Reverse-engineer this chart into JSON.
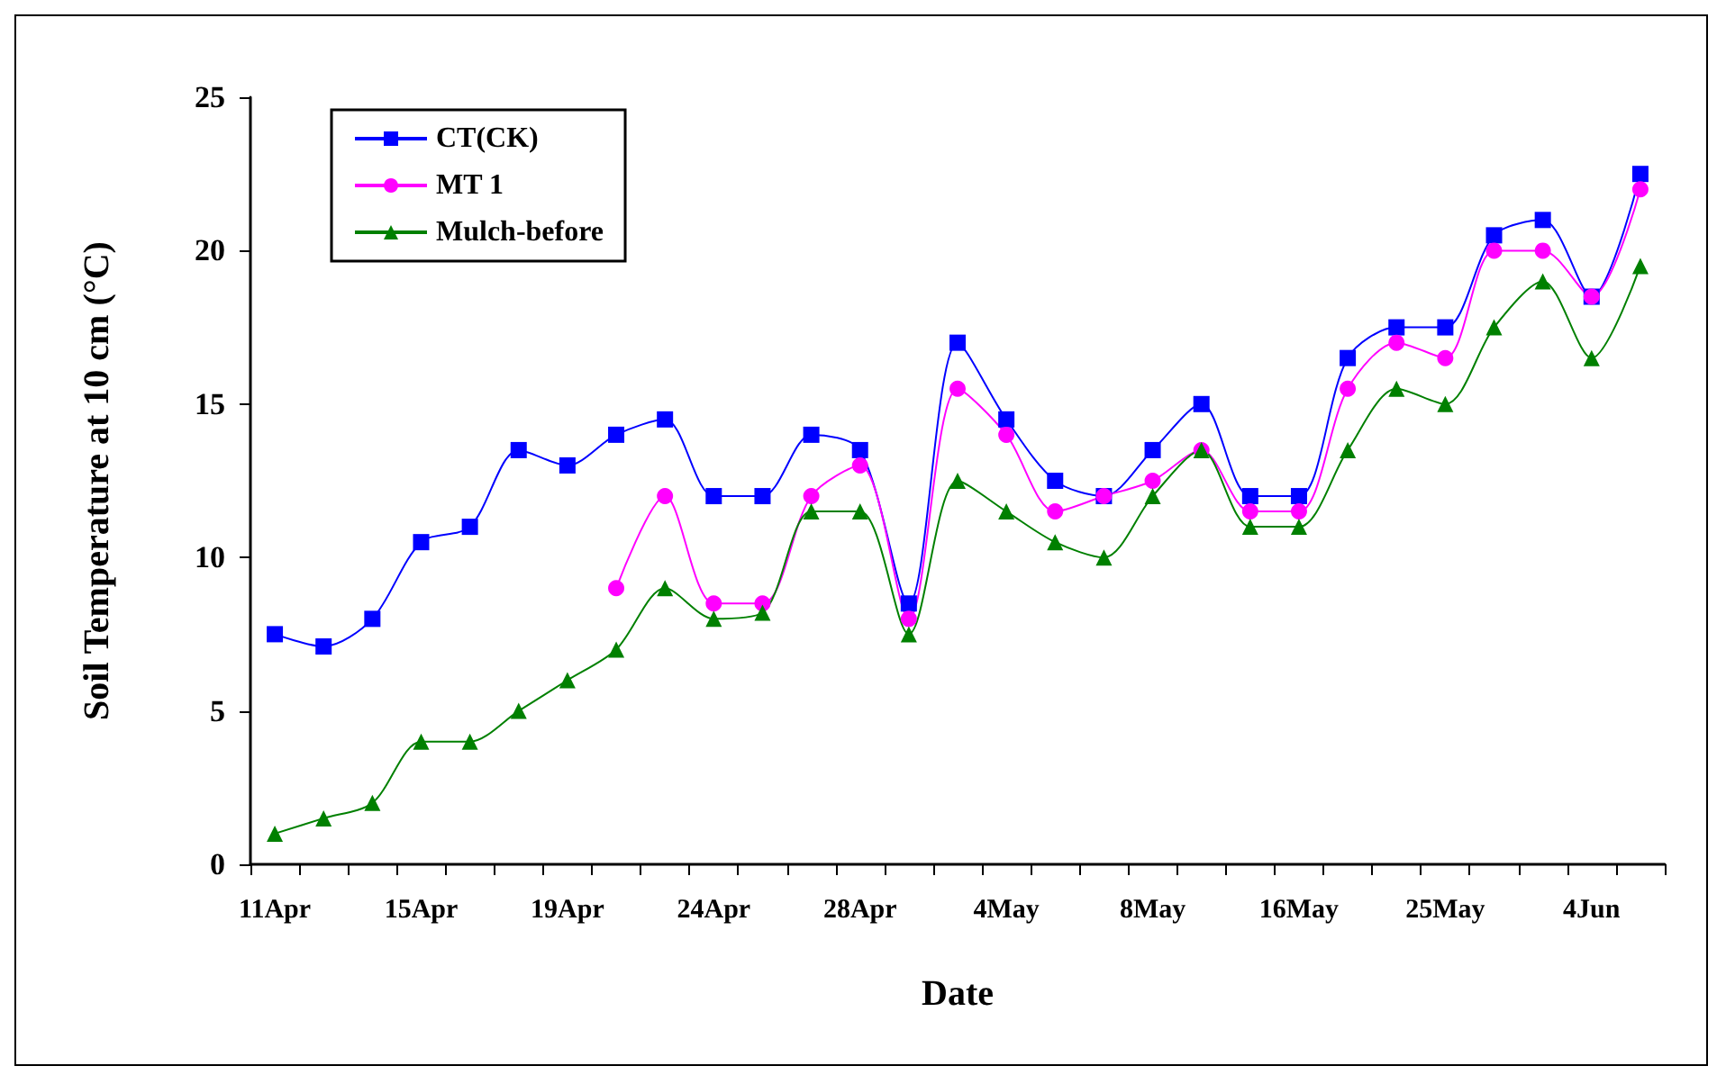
{
  "chart_data": {
    "type": "line",
    "xlabel": "Date",
    "ylabel": "Soil Temperature at 10 cm (°C)",
    "categories": [
      "11Apr",
      null,
      null,
      "15Apr",
      null,
      null,
      "19Apr",
      null,
      null,
      "24Apr",
      null,
      null,
      "28Apr",
      null,
      null,
      "4May",
      null,
      null,
      "8May",
      null,
      null,
      "16May",
      null,
      null,
      "25May",
      null,
      null,
      "4Jun",
      null
    ],
    "series": [
      {
        "name": "CT(CK)",
        "color": "#0000ff",
        "marker": "square",
        "values": [
          7.5,
          7.1,
          8,
          10.5,
          11,
          13.5,
          13,
          14,
          14.5,
          12,
          12,
          14,
          13.5,
          8.5,
          17,
          14.5,
          12.5,
          12,
          13.5,
          15,
          12,
          12,
          16.5,
          17.5,
          17.5,
          20.5,
          21,
          18.5,
          22.5
        ]
      },
      {
        "name": "MT 1",
        "color": "#ff00ff",
        "marker": "circle",
        "values": [
          null,
          null,
          null,
          null,
          null,
          null,
          null,
          9,
          12,
          8.5,
          8.5,
          12,
          13,
          8,
          15.5,
          14,
          11.5,
          12,
          12.5,
          13.5,
          11.5,
          11.5,
          15.5,
          17,
          16.5,
          20,
          20,
          18.5,
          22
        ]
      },
      {
        "name": "Mulch-before",
        "color": "#008000",
        "marker": "triangle",
        "values": [
          1,
          1.5,
          2,
          4,
          4,
          5,
          6,
          7,
          9,
          8,
          8.2,
          11.5,
          11.5,
          7.5,
          12.5,
          11.5,
          10.5,
          10,
          12,
          13.5,
          11,
          11,
          13.5,
          15.5,
          15,
          17.5,
          19,
          16.5,
          19.5
        ]
      }
    ],
    "ylim": [
      0,
      25
    ],
    "yticks": [
      0,
      5,
      10,
      15,
      20,
      25
    ],
    "grid": false,
    "legend": "top left",
    "line_style": "solid"
  }
}
